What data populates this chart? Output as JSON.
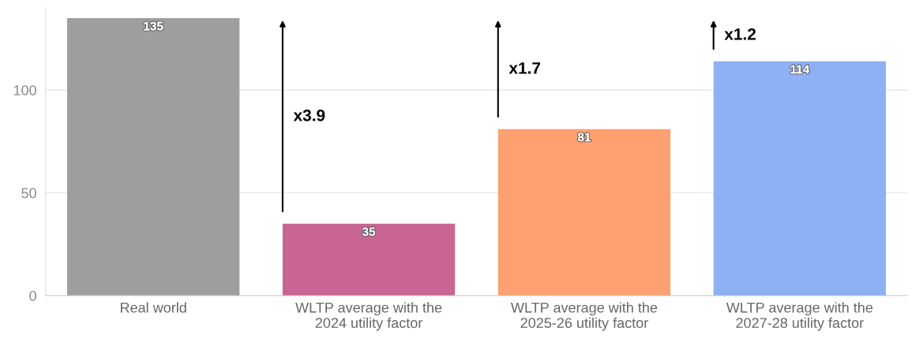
{
  "chart_data": {
    "type": "bar",
    "categories": [
      "Real world",
      "WLTP average with the\n2024 utility factor",
      "WLTP average with the\n2025-26 utility factor",
      "WLTP average with the\n2027-28 utility factor"
    ],
    "values": [
      135,
      35,
      81,
      114
    ],
    "colors": [
      "#9e9e9e",
      "#c96592",
      "#ffa070",
      "#8eb0f4"
    ],
    "ylim": [
      0,
      140
    ],
    "yticks": [
      0,
      50,
      100
    ],
    "grid": "y",
    "data_labels": true,
    "annotations": [
      "x3.9",
      "x1.7",
      "x1.2"
    ]
  }
}
